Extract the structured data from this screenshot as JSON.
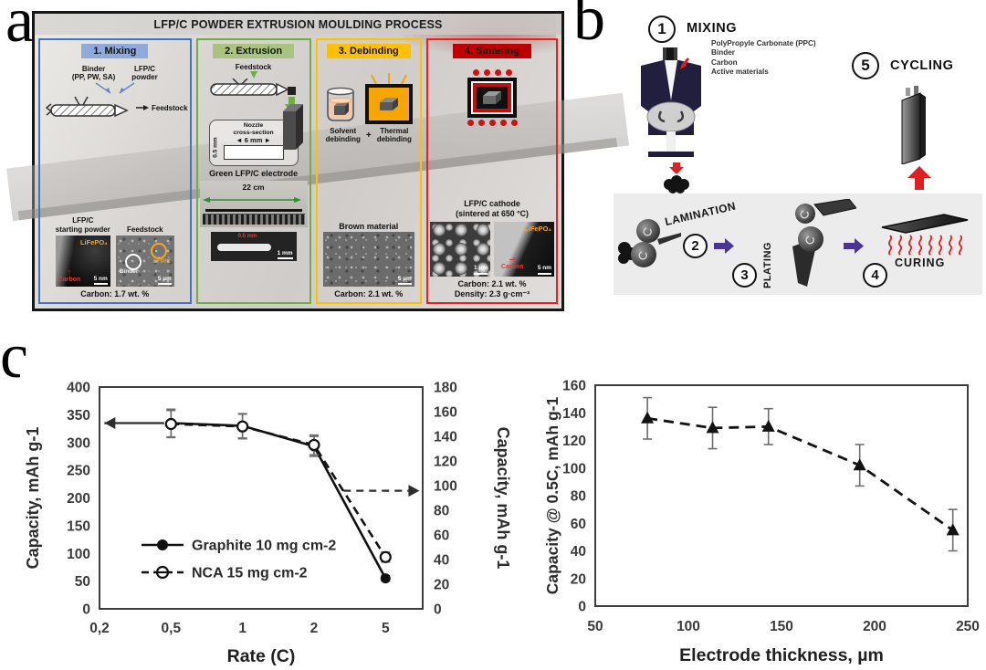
{
  "figure": {
    "panel_labels": {
      "a": "a",
      "b": "b",
      "c": "c"
    }
  },
  "panel_a": {
    "title": "LFP/C POWDER EXTRUSION MOULDING PROCESS",
    "colors": {
      "mixing_header": "#8ea9db",
      "mixing_border": "#4472c4",
      "extrusion_header": "#a9c47f",
      "extrusion_border": "#70ad47",
      "debinding_header": "#ffc000",
      "debinding_border": "#ffc000",
      "sintering_header": "#c00000",
      "sintering_border": "#e52222"
    },
    "steps": [
      {
        "header": "1. Mixing",
        "binder_label_1": "Binder",
        "binder_label_2": "(PP, PW, SA)",
        "powder_label_1": "LFP/C",
        "powder_label_2": "powder",
        "feedstock_label": "Feedstock",
        "img1_caption_1": "LFP/C",
        "img1_caption_2": "starting powder",
        "img1_tag_top": "LiFePO₄",
        "img1_tag_bottom": "Carbon",
        "img1_scale": "5 nm",
        "img2_caption": "Feedstock",
        "img2_tag_1": "Binder",
        "img2_tag_2": "LFP/C",
        "img2_scale": "5 µm",
        "note": "Carbon: 1.7 wt. %"
      },
      {
        "header": "2. Extrusion",
        "feedstock_label": "Feedstock",
        "nozzle_label_1": "Nozzle",
        "nozzle_label_2": "cross-section",
        "nozzle_width": "6 mm",
        "nozzle_height": "0.5 mm",
        "electrode_caption": "Green LFP/C electrode",
        "ruler_label": "22 cm",
        "xsec_label": "0.5 mm",
        "xsec_scale": "1 mm"
      },
      {
        "header": "3. Debinding",
        "solvent_label_1": "Solvent",
        "solvent_label_2": "debinding",
        "plus": "+",
        "thermal_label_1": "Thermal",
        "thermal_label_2": "debinding",
        "caption": "Brown material",
        "scale": "5 µm",
        "note": "Carbon: 2.1 wt. %"
      },
      {
        "header": "4. Sintering",
        "caption_1": "LFP/C cathode",
        "caption_2": "(sintered at 650 °C)",
        "img1_scale": "1 µm",
        "img2_tag_top": "LiFePO₄",
        "img2_tag_bottom": "Carbon",
        "img2_scale": "5 nm",
        "note_1": "Carbon: 2.1 wt. %",
        "note_2": "Density: 2.3 g·cm⁻³"
      }
    ]
  },
  "panel_b": {
    "mixing": {
      "num": "1",
      "label": "MIXING",
      "materials": [
        "PolyPropyle Carbonate (PPC)",
        "Binder",
        "Carbon",
        "Active materials"
      ]
    },
    "lamination": {
      "num": "2",
      "label": "LAMINATION"
    },
    "plating": {
      "num": "3",
      "label": "PLATING"
    },
    "curing": {
      "num": "4",
      "label": "CURING"
    },
    "cycling": {
      "num": "5",
      "label": "CYCLING"
    },
    "colors": {
      "arrow_purple": "#4b3591",
      "arrow_red": "#e02020"
    }
  },
  "chart_data": [
    {
      "type": "line",
      "xlabel": "Rate (C)",
      "x_tick_labels": [
        "0,2",
        "0,5",
        "1",
        "2",
        "5"
      ],
      "x_tick_values": [
        0.2,
        0.5,
        1,
        2,
        5
      ],
      "ylabel_left": "Capacity, mAh g-1",
      "ylim_left": [
        0,
        400
      ],
      "ytick_step_left": 50,
      "ylabel_right": "Capacity, mAh g-1",
      "ylim_right": [
        0,
        180
      ],
      "ytick_step_right": 20,
      "grid": false,
      "legend_position": "inside-lower-left",
      "series": [
        {
          "name": "Graphite 10 mg cm-2",
          "axis": "left",
          "line": "solid",
          "marker": "filled-circle",
          "x": [
            0.5,
            1,
            2,
            5
          ],
          "values": [
            335,
            330,
            293,
            55
          ],
          "errors": [
            25,
            22,
            18,
            5
          ]
        },
        {
          "name": "NCA 15 mg cm-2",
          "axis": "right",
          "line": "dashed",
          "marker": "open-circle",
          "x": [
            0.5,
            1,
            2,
            5
          ],
          "values": [
            150,
            148,
            133,
            42
          ],
          "errors": [
            11,
            10,
            8,
            4
          ]
        }
      ],
      "axis_arrows": [
        {
          "style": "solid",
          "direction": "left",
          "y_left_axis": 335,
          "x_frac_from": 0.2,
          "x_frac_to": 0.015
        },
        {
          "style": "dashed",
          "direction": "right",
          "y_left_axis": 213,
          "x_frac_from": 0.755,
          "x_frac_to": 0.99
        }
      ]
    },
    {
      "type": "line",
      "xlabel": "Electrode thickness, µm",
      "ylabel": "Capacity @ 0.5C, mAh g-1",
      "xlim": [
        50,
        250
      ],
      "xticks": [
        50,
        100,
        150,
        200,
        250
      ],
      "ylim": [
        0,
        160
      ],
      "ytick_step": 20,
      "grid": false,
      "series": [
        {
          "name": "Capacity @ 0.5C",
          "line": "dashed",
          "marker": "filled-triangle",
          "x": [
            78,
            113,
            143,
            192,
            242
          ],
          "values": [
            136,
            129,
            130,
            102,
            55
          ],
          "errors": [
            15,
            15,
            13,
            15,
            15
          ]
        }
      ]
    }
  ]
}
